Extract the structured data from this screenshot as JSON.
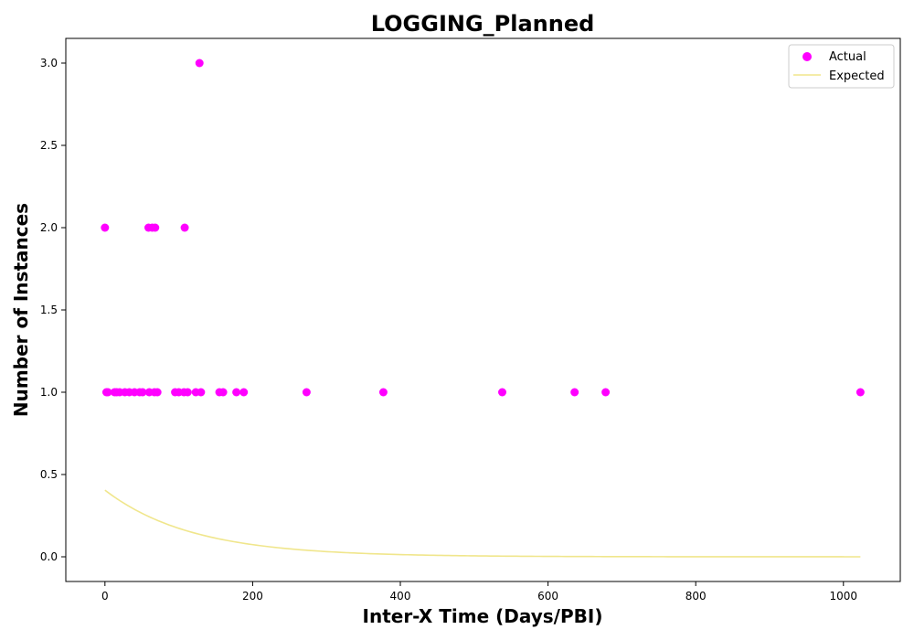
{
  "chart_data": {
    "type": "scatter",
    "title": "LOGGING_Planned",
    "xlabel": "Inter-X Time (Days/PBI)",
    "ylabel": "Number of Instances",
    "xlim": [
      -53,
      1077
    ],
    "ylim": [
      -0.15,
      3.15
    ],
    "xticks": [
      "0",
      "200",
      "400",
      "600",
      "800",
      "1000"
    ],
    "yticks": [
      "0.0",
      "0.5",
      "1.0",
      "1.5",
      "2.0",
      "2.5",
      "3.0"
    ],
    "grid": false,
    "legend_position": "top-right",
    "series": [
      {
        "name": "Actual",
        "kind": "scatter",
        "color": "#ff00ff",
        "points": [
          [
            0,
            2
          ],
          [
            2,
            1
          ],
          [
            4,
            1
          ],
          [
            13,
            1
          ],
          [
            16,
            1
          ],
          [
            20,
            1
          ],
          [
            27,
            1
          ],
          [
            33,
            1
          ],
          [
            40,
            1
          ],
          [
            47,
            1
          ],
          [
            51,
            1
          ],
          [
            59,
            2
          ],
          [
            60,
            1
          ],
          [
            64,
            2
          ],
          [
            67,
            1
          ],
          [
            68,
            2
          ],
          [
            71,
            1
          ],
          [
            95,
            1
          ],
          [
            100,
            1
          ],
          [
            107,
            1
          ],
          [
            108,
            2
          ],
          [
            112,
            1
          ],
          [
            123,
            1
          ],
          [
            128,
            3
          ],
          [
            130,
            1
          ],
          [
            155,
            1
          ],
          [
            160,
            1
          ],
          [
            178,
            1
          ],
          [
            188,
            1
          ],
          [
            273,
            1
          ],
          [
            377,
            1
          ],
          [
            538,
            1
          ],
          [
            636,
            1
          ],
          [
            678,
            1
          ],
          [
            1023,
            1
          ]
        ]
      },
      {
        "name": "Expected",
        "kind": "line",
        "color": "#f0e68c",
        "curve": {
          "form": "exponential_decay",
          "a": 0.405,
          "k": 0.0085,
          "x_start": 0,
          "x_end": 1023
        }
      }
    ]
  }
}
